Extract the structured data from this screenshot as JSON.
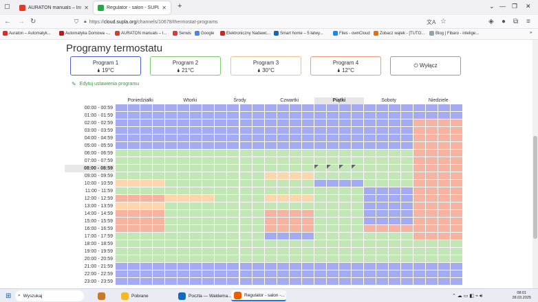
{
  "browser": {
    "tabs": [
      {
        "label": "AURATON manuals – Instrukcje",
        "color": "#e03b24",
        "active": false
      },
      {
        "label": "Regulator - salon - SUPLA Cloud",
        "color": "#28a745",
        "active": true
      }
    ],
    "new_tab_label": "+",
    "url": {
      "prefix": "https://",
      "domain": "cloud.supla.org",
      "path": "/channels/10678/thermostat-programs"
    },
    "bookmarks": [
      {
        "label": "Auraton – Automatyk...",
        "color": "#d32f2f"
      },
      {
        "label": "Automatyka Domowa -...",
        "color": "#b71c1c"
      },
      {
        "label": "AURATON manuals – I...",
        "color": "#e03b24"
      },
      {
        "label": "Serwis",
        "color": "#e53935"
      },
      {
        "label": "Google",
        "color": "#4285f4"
      },
      {
        "label": "Elektroniczny Nadawc...",
        "color": "#c62828"
      },
      {
        "label": "Smart home – 5 łatwy...",
        "color": "#1565c0"
      },
      {
        "label": "Files - ownCloud",
        "color": "#1e88e5"
      },
      {
        "label": "Zobacz wątek - [TUTO...",
        "color": "#ef6c00"
      },
      {
        "label": "Blog | Fibaro - intelige...",
        "color": "#90a4ae"
      }
    ]
  },
  "page": {
    "title": "Programy termostatu",
    "edit_label": "Edytuj ustawienia programu",
    "programs": [
      {
        "name": "Program 1",
        "temp": "🌢 19°C",
        "border": "#4a5fd6"
      },
      {
        "name": "Program 2",
        "temp": "🌢 21°C",
        "border": "#7ccc6a"
      },
      {
        "name": "Program 3",
        "temp": "🌢 30°C",
        "border": "#f5c08a"
      },
      {
        "name": "Program 4",
        "temp": "🌢 12°C",
        "border": "#f19a7a"
      },
      {
        "name": "⏻ Wyłącz",
        "temp": "",
        "border": "#9a9a9a"
      }
    ],
    "days": [
      "Poniedziałki",
      "Wtorki",
      "Środy",
      "Czwartki",
      "Piątki",
      "Soboty",
      "Niedziele"
    ],
    "today_index": 4,
    "hours": [
      "00:00 - 00:59",
      "01:00 - 01:59",
      "02:00 - 02:59",
      "03:00 - 03:59",
      "04:00 - 04:59",
      "05:00 - 05:59",
      "06:00 - 06:59",
      "07:00 - 07:59",
      "08:00 - 08:59",
      "09:00 - 09:59",
      "10:00 - 10:59",
      "11:00 - 11:59",
      "12:00 - 12:59",
      "13:00 - 13:59",
      "14:00 - 14:59",
      "15:00 - 15:59",
      "16:00 - 16:59",
      "17:00 - 17:59",
      "18:00 - 18:59",
      "19:00 - 19:59",
      "20:00 - 20:59",
      "21:00 - 21:59",
      "22:00 - 22:59",
      "23:00 - 23:59"
    ],
    "current_hour_index": 8,
    "schedule": [
      "1111111111111111111111111111",
      "1111111111111111111111111111",
      "1111111111111111111111114444",
      "1111111111111111111111114444",
      "1111111111111111111111114444",
      "1111111111111111111111114444",
      "2222222222222222222222224444",
      "2222222222222222222222224444",
      "2222222222222222222222224444",
      "2222222222223333222222224444",
      "3333222222222222111122224444",
      "2222222222222222222211114444",
      "4444333322223333222211114444",
      "3333222222222222222211114444",
      "4444222222224444222211114444",
      "4444222222224444222211114444",
      "4444222222224444222244444444",
      "2222222222221111222222224444",
      "2222222222222222222222222222",
      "2222222222222222222222222222",
      "2222222222222222222222222222",
      "1111111111111111111111111111",
      "1111111111111111111111111111",
      "1111111111111111111111111111"
    ],
    "colors": {
      "1": "#a4abf0",
      "2": "#c3e6b6",
      "3": "#fdd6ad",
      "4": "#f7b3a2"
    }
  },
  "taskbar": {
    "search_label": "Wyszukaj",
    "items": [
      {
        "label": "Pobrane",
        "color": "#f2b92b",
        "active": false
      },
      {
        "label": "Poczta — Waldema...",
        "color": "#0f6cbd",
        "active": false
      },
      {
        "label": "Regulator - salon -...",
        "color": "#e66000",
        "active": true
      }
    ],
    "time": "08:01",
    "date": "28.03.2025"
  }
}
